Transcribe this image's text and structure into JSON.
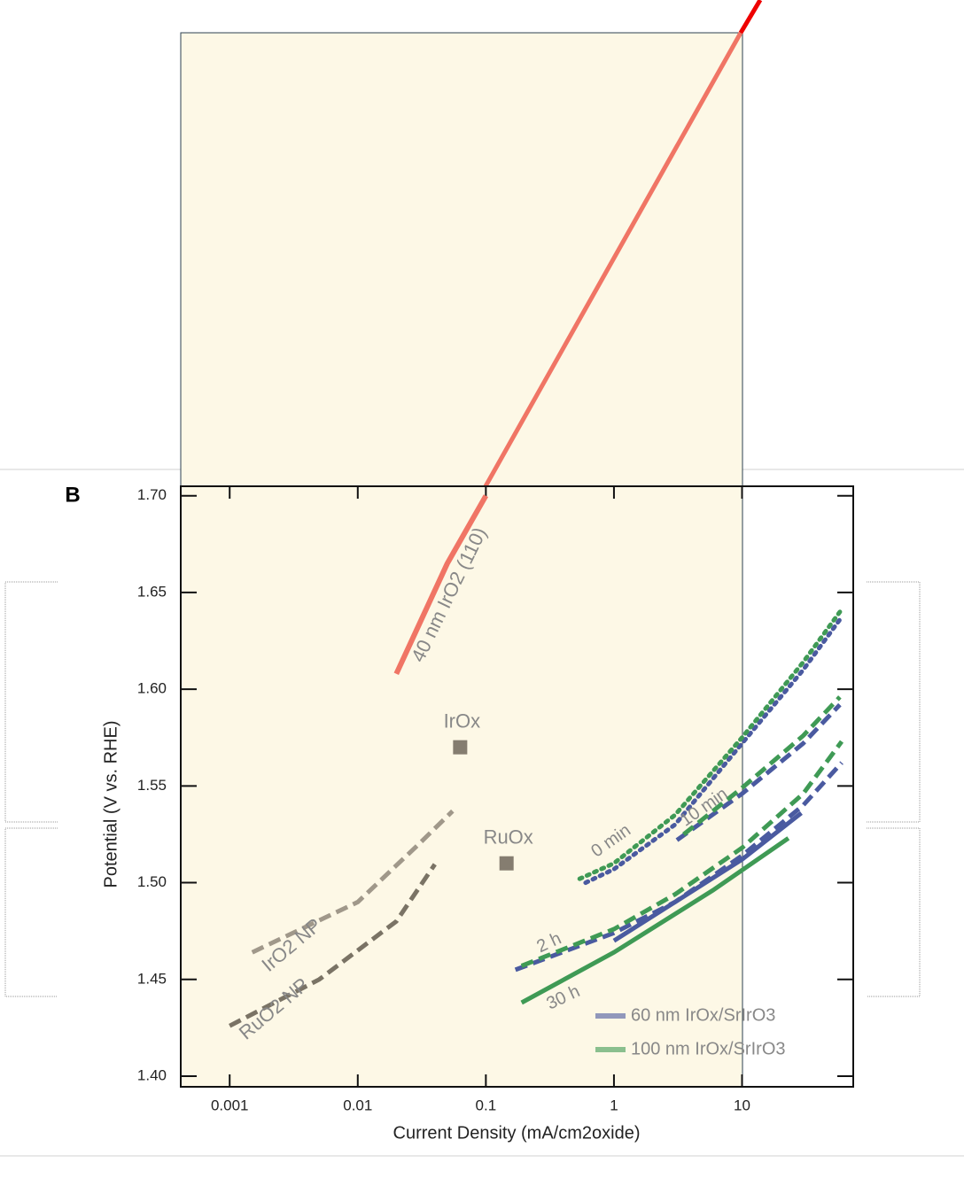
{
  "chart_data": {
    "type": "line",
    "panel": "B",
    "x_label": "Current Density (mA/cm2oxide)",
    "y_label": "Potential (V vs. RHE)",
    "xscale": "log",
    "xlim": [
      0.000415,
      73.8
    ],
    "ylim": [
      1.3945,
      1.7049
    ],
    "xticks": [
      0.001,
      0.01,
      0.1,
      1,
      10
    ],
    "yticks": [
      {
        "value": 1.4,
        "label": "1.40"
      },
      1.45,
      {
        "value": 1.5,
        "label": "1.50"
      },
      1.55,
      {
        "value": 1.6,
        "label": "1.60"
      },
      1.65,
      {
        "value": 1.7,
        "label": "1.70"
      }
    ],
    "legend": "lower right",
    "points": [
      {
        "name": "IrOx",
        "color": "#857d70",
        "x": 0.063,
        "y": 1.57
      },
      {
        "name": "RuOx",
        "color": "#857d70",
        "x": 0.145,
        "y": 1.51
      }
    ],
    "annotations": [
      "0 min",
      "10 min",
      "2 h",
      "30 h"
    ],
    "series": [
      {
        "name": "40 nm IrO2 (110)",
        "color": "#f07565",
        "style": "solid",
        "x": [
          0.02,
          0.05,
          0.1
        ],
        "values": [
          1.608,
          1.665,
          1.7
        ]
      },
      {
        "name": "IrO2 NP",
        "color": "#a0988a",
        "style": "dashed",
        "x": [
          0.0015,
          0.01,
          0.03,
          0.055
        ],
        "values": [
          1.464,
          1.49,
          1.52,
          1.537
        ]
      },
      {
        "name": "RuO2 NP",
        "color": "#7a7365",
        "style": "dashed",
        "x": [
          0.001,
          0.005,
          0.02,
          0.04
        ],
        "values": [
          1.426,
          1.45,
          1.48,
          1.5095
        ]
      },
      {
        "name": "60 nm IrOx/SrIrO3",
        "color": "#4a5aa0",
        "lines": [
          {
            "style": "dotted",
            "x": [
              0.6,
              1,
              3,
              10,
              30,
              58
            ],
            "values": [
              1.5,
              1.507,
              1.53,
              1.572,
              1.61,
              1.636
            ]
          },
          {
            "style": "dashed",
            "x": [
              3.1,
              10,
              30,
              58
            ],
            "values": [
              1.522,
              1.546,
              1.572,
              1.592
            ]
          },
          {
            "style": "dashed",
            "x": [
              0.17,
              1,
              3,
              10,
              30,
              60
            ],
            "values": [
              1.455,
              1.474,
              1.49,
              1.514,
              1.54,
              1.562
            ]
          },
          {
            "style": "solid",
            "x": [
              1,
              3,
              10,
              29
            ],
            "values": [
              1.47,
              1.49,
              1.512,
              1.536
            ]
          }
        ]
      },
      {
        "name": "100 nm IrOx/SrIrO3",
        "color": "#3f9a55",
        "lines": [
          {
            "style": "dotted",
            "x": [
              0.54,
              1,
              3,
              10,
              30,
              58
            ],
            "values": [
              1.502,
              1.51,
              1.535,
              1.575,
              1.614,
              1.64
            ]
          },
          {
            "style": "dashed",
            "x": [
              3.5,
              10,
              30,
              58
            ],
            "values": [
              1.525,
              1.549,
              1.576,
              1.596
            ]
          },
          {
            "style": "dashed",
            "x": [
              0.19,
              1,
              3,
              10,
              30,
              60
            ],
            "values": [
              1.457,
              1.476,
              1.494,
              1.518,
              1.546,
              1.573
            ]
          },
          {
            "style": "solid",
            "x": [
              0.19,
              1,
              5.9,
              23
            ],
            "values": [
              1.438,
              1.464,
              1.496,
              1.523
            ]
          }
        ]
      }
    ]
  }
}
